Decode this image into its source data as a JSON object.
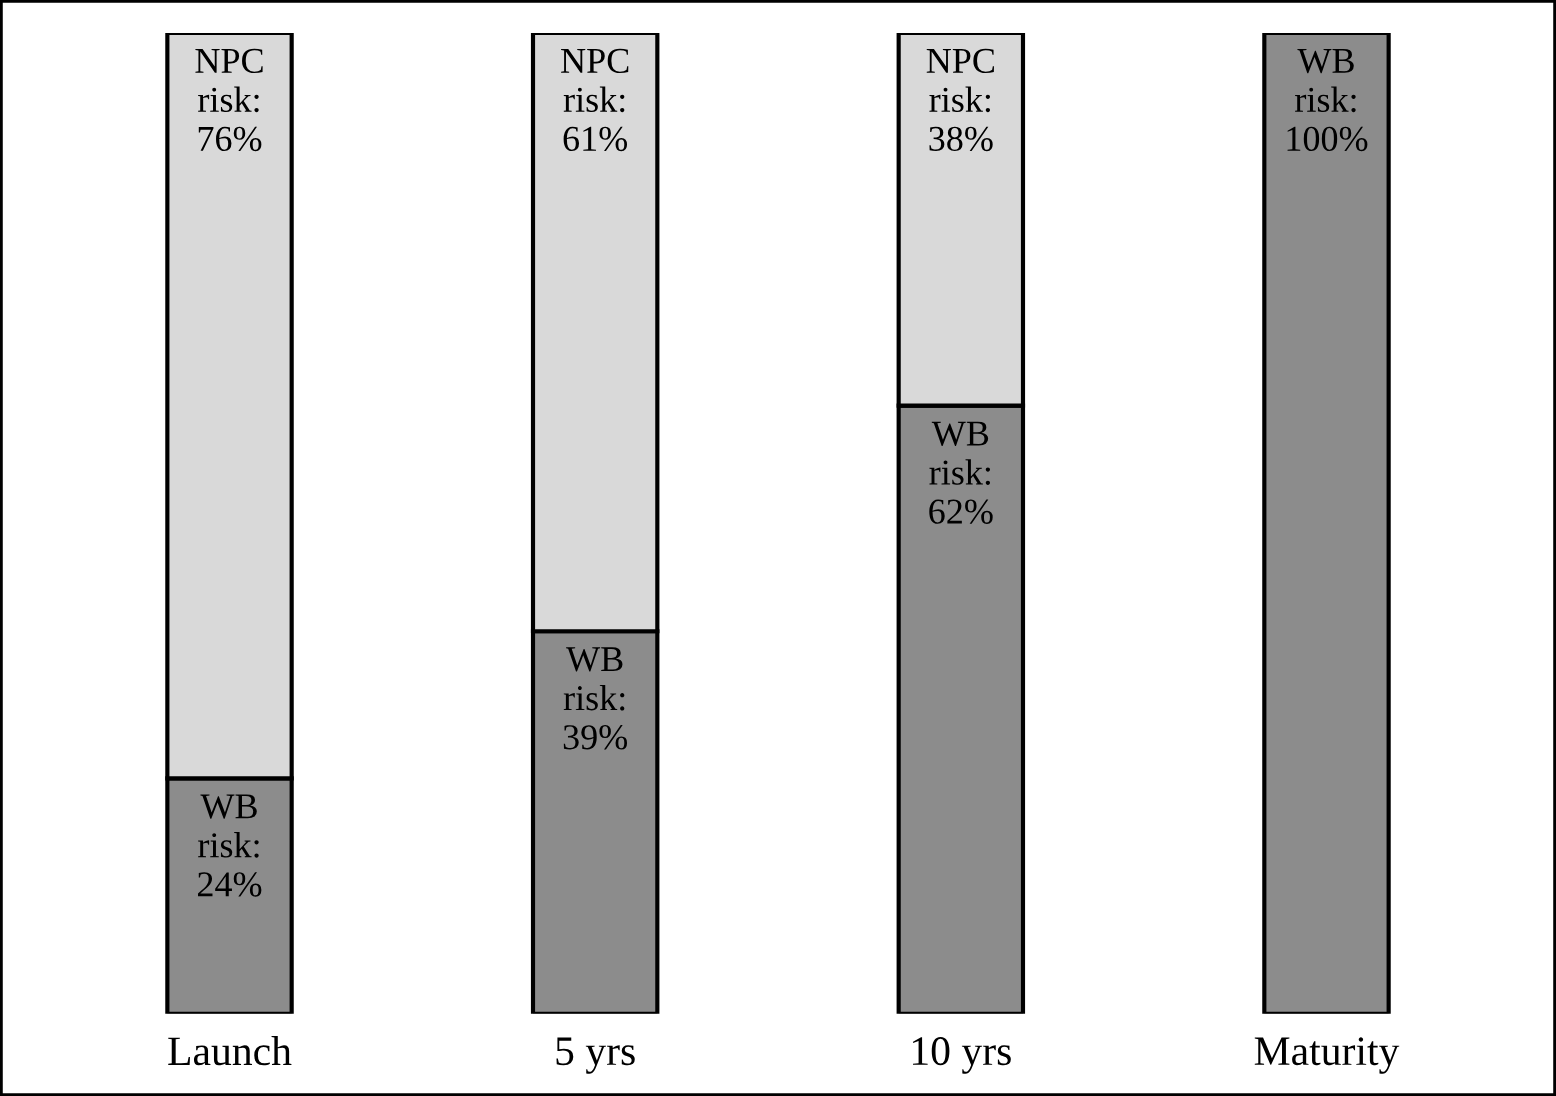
{
  "chart_data": {
    "type": "bar",
    "stacked": true,
    "categories": [
      "Launch",
      "5 yrs",
      "10 yrs",
      "Maturity"
    ],
    "series": [
      {
        "color": "#8c8c8c",
        "values": [
          24,
          39,
          62,
          100
        ],
        "value_labels": [
          "WB\nrisk:\n24%",
          "WB\nrisk:\n39%",
          "WB\nrisk:\n62%",
          "WB\nrisk:\n100%"
        ]
      },
      {
        "color": "#d9d9d9",
        "values": [
          76,
          61,
          38,
          null
        ],
        "value_labels": [
          "NPC\nrisk:\n76%",
          "NPC\nrisk:\n61%",
          "NPC\nrisk:\n38%",
          null
        ]
      }
    ],
    "grid": false,
    "legend": false,
    "tick_labels": "x"
  }
}
